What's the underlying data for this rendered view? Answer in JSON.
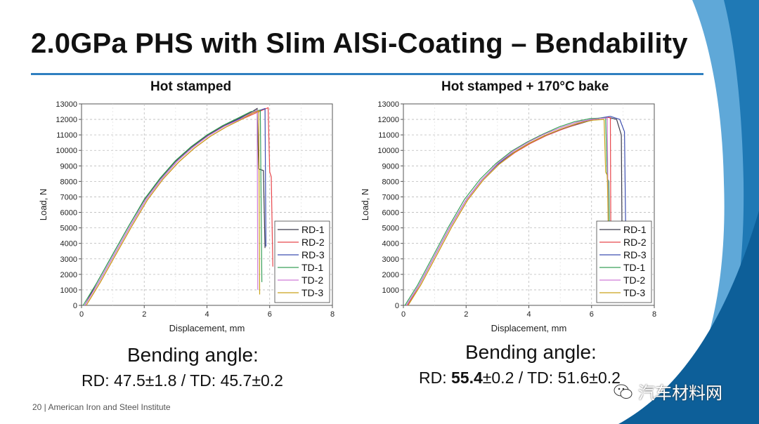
{
  "slide": {
    "title": "2.0GPa PHS with Slim AlSi-Coating – Bendability",
    "footer": "20  |  American Iron and Steel Institute",
    "watermark": "汽车材料网",
    "accent_color": "#2f7fc0"
  },
  "left": {
    "angle_heading": "Bending angle:",
    "rd_label": "RD: ",
    "rd_value": "47.5±1.8",
    "sep": " / TD: ",
    "td_value": "45.7±0.2"
  },
  "right": {
    "angle_heading": "Bending angle:",
    "rd_label": "RD: ",
    "rd_value": "55.4",
    "rd_tol": "±0.2",
    "sep": " / TD: ",
    "td_value": "51.6±0.2"
  },
  "chart_data": [
    {
      "type": "line",
      "title": "Hot stamped",
      "xlabel": "Displacement, mm",
      "ylabel": "Load, N",
      "xlim": [
        0,
        8
      ],
      "ylim": [
        0,
        13000
      ],
      "xticks": [
        0,
        2,
        4,
        6,
        8
      ],
      "yticks": [
        0,
        1000,
        2000,
        3000,
        4000,
        5000,
        6000,
        7000,
        8000,
        9000,
        10000,
        11000,
        12000,
        13000
      ],
      "grid": true,
      "legend": "bottom-right",
      "series": [
        {
          "name": "RD-1",
          "color": "#3a3a4a",
          "points": [
            [
              0.1,
              0
            ],
            [
              0.5,
              1500
            ],
            [
              1,
              3300
            ],
            [
              1.5,
              5100
            ],
            [
              2,
              6800
            ],
            [
              2.5,
              8150
            ],
            [
              3,
              9300
            ],
            [
              3.5,
              10200
            ],
            [
              4,
              10950
            ],
            [
              4.5,
              11550
            ],
            [
              5,
              12050
            ],
            [
              5.4,
              12450
            ],
            [
              5.6,
              12700
            ],
            [
              5.65,
              8800
            ],
            [
              5.8,
              8700
            ],
            [
              5.85,
              3700
            ]
          ]
        },
        {
          "name": "RD-2",
          "color": "#e8474c",
          "points": [
            [
              0.15,
              0
            ],
            [
              0.6,
              1500
            ],
            [
              1.1,
              3300
            ],
            [
              1.6,
              5100
            ],
            [
              2.1,
              6800
            ],
            [
              2.6,
              8150
            ],
            [
              3.1,
              9250
            ],
            [
              3.6,
              10150
            ],
            [
              4.1,
              10900
            ],
            [
              4.6,
              11500
            ],
            [
              5.1,
              12000
            ],
            [
              5.6,
              12450
            ],
            [
              5.95,
              12750
            ],
            [
              6.0,
              8600
            ],
            [
              6.05,
              8300
            ],
            [
              6.1,
              2500
            ]
          ]
        },
        {
          "name": "RD-3",
          "color": "#3d4fb0",
          "points": [
            [
              0.1,
              0
            ],
            [
              0.55,
              1500
            ],
            [
              1.05,
              3300
            ],
            [
              1.55,
              5100
            ],
            [
              2.05,
              6800
            ],
            [
              2.55,
              8150
            ],
            [
              3.05,
              9300
            ],
            [
              3.55,
              10200
            ],
            [
              4.05,
              10950
            ],
            [
              4.55,
              11550
            ],
            [
              5.05,
              12050
            ],
            [
              5.5,
              12450
            ],
            [
              5.85,
              12700
            ],
            [
              5.88,
              3800
            ]
          ]
        },
        {
          "name": "TD-1",
          "color": "#3aa05a",
          "points": [
            [
              0.05,
              0
            ],
            [
              0.5,
              1500
            ],
            [
              1,
              3300
            ],
            [
              1.5,
              5100
            ],
            [
              2,
              6850
            ],
            [
              2.5,
              8200
            ],
            [
              3,
              9350
            ],
            [
              3.5,
              10250
            ],
            [
              4,
              11000
            ],
            [
              4.5,
              11600
            ],
            [
              5,
              12100
            ],
            [
              5.4,
              12500
            ],
            [
              5.7,
              12600
            ],
            [
              5.75,
              1500
            ]
          ]
        },
        {
          "name": "TD-2",
          "color": "#d07ad8",
          "points": [
            [
              0.1,
              0
            ],
            [
              0.55,
              1500
            ],
            [
              1.05,
              3300
            ],
            [
              1.55,
              5100
            ],
            [
              2.05,
              6800
            ],
            [
              2.55,
              8150
            ],
            [
              3.05,
              9300
            ],
            [
              3.55,
              10200
            ],
            [
              4.05,
              10950
            ],
            [
              4.55,
              11550
            ],
            [
              5.05,
              12000
            ],
            [
              5.4,
              12400
            ],
            [
              5.6,
              12600
            ],
            [
              5.62,
              1000
            ]
          ]
        },
        {
          "name": "TD-3",
          "color": "#c9a21a",
          "points": [
            [
              0.15,
              0
            ],
            [
              0.6,
              1500
            ],
            [
              1.1,
              3300
            ],
            [
              1.6,
              5100
            ],
            [
              2.1,
              6800
            ],
            [
              2.6,
              8150
            ],
            [
              3.1,
              9250
            ],
            [
              3.6,
              10150
            ],
            [
              4.1,
              10900
            ],
            [
              4.6,
              11500
            ],
            [
              5.1,
              12000
            ],
            [
              5.45,
              12400
            ],
            [
              5.65,
              12550
            ],
            [
              5.68,
              700
            ]
          ]
        }
      ]
    },
    {
      "type": "line",
      "title": "Hot stamped + 170°C bake",
      "xlabel": "Displacement, mm",
      "ylabel": "Load, N",
      "xlim": [
        0,
        8
      ],
      "ylim": [
        0,
        13000
      ],
      "xticks": [
        0,
        2,
        4,
        6,
        8
      ],
      "yticks": [
        0,
        1000,
        2000,
        3000,
        4000,
        5000,
        6000,
        7000,
        8000,
        9000,
        10000,
        11000,
        12000,
        13000
      ],
      "grid": true,
      "legend": "bottom-right",
      "series": [
        {
          "name": "RD-1",
          "color": "#3a3a4a",
          "points": [
            [
              0.1,
              0
            ],
            [
              0.5,
              1300
            ],
            [
              1,
              3200
            ],
            [
              1.5,
              5100
            ],
            [
              2,
              6800
            ],
            [
              2.5,
              8100
            ],
            [
              3,
              9100
            ],
            [
              3.5,
              9850
            ],
            [
              4,
              10450
            ],
            [
              4.5,
              10950
            ],
            [
              5,
              11350
            ],
            [
              5.5,
              11650
            ],
            [
              6,
              11950
            ],
            [
              6.5,
              12150
            ],
            [
              6.8,
              12000
            ],
            [
              6.95,
              11000
            ],
            [
              6.97,
              5200
            ],
            [
              7.05,
              4900
            ],
            [
              7.1,
              2800
            ]
          ]
        },
        {
          "name": "RD-2",
          "color": "#e8474c",
          "points": [
            [
              0.12,
              0
            ],
            [
              0.55,
              1300
            ],
            [
              1.05,
              3200
            ],
            [
              1.55,
              5100
            ],
            [
              2.05,
              6800
            ],
            [
              2.55,
              8100
            ],
            [
              3.05,
              9100
            ],
            [
              3.55,
              9850
            ],
            [
              4.05,
              10450
            ],
            [
              4.55,
              10950
            ],
            [
              5.05,
              11350
            ],
            [
              5.55,
              11700
            ],
            [
              6.05,
              12000
            ],
            [
              6.5,
              12150
            ],
            [
              6.6,
              12100
            ],
            [
              6.62,
              1700
            ]
          ]
        },
        {
          "name": "RD-3",
          "color": "#3d4fb0",
          "points": [
            [
              0.1,
              0
            ],
            [
              0.5,
              1300
            ],
            [
              1,
              3200
            ],
            [
              1.5,
              5100
            ],
            [
              2,
              6800
            ],
            [
              2.5,
              8100
            ],
            [
              3,
              9100
            ],
            [
              3.5,
              9850
            ],
            [
              4,
              10450
            ],
            [
              4.5,
              10950
            ],
            [
              5,
              11350
            ],
            [
              5.5,
              11700
            ],
            [
              6,
              12000
            ],
            [
              6.6,
              12200
            ],
            [
              6.9,
              12000
            ],
            [
              7.05,
              11200
            ],
            [
              7.1,
              3000
            ]
          ]
        },
        {
          "name": "TD-1",
          "color": "#3aa05a",
          "points": [
            [
              0.05,
              0
            ],
            [
              0.45,
              1300
            ],
            [
              0.95,
              3200
            ],
            [
              1.45,
              5100
            ],
            [
              1.95,
              6850
            ],
            [
              2.45,
              8150
            ],
            [
              2.95,
              9150
            ],
            [
              3.45,
              9950
            ],
            [
              3.95,
              10550
            ],
            [
              4.45,
              11050
            ],
            [
              4.95,
              11500
            ],
            [
              5.45,
              11850
            ],
            [
              5.95,
              12050
            ],
            [
              6.45,
              12100
            ],
            [
              6.5,
              8200
            ],
            [
              6.55,
              8000
            ],
            [
              6.58,
              3200
            ]
          ]
        },
        {
          "name": "TD-2",
          "color": "#d07ad8",
          "points": [
            [
              0.1,
              0
            ],
            [
              0.5,
              1300
            ],
            [
              1,
              3200
            ],
            [
              1.5,
              5100
            ],
            [
              2,
              6800
            ],
            [
              2.5,
              8100
            ],
            [
              3,
              9150
            ],
            [
              3.5,
              9950
            ],
            [
              4,
              10550
            ],
            [
              4.5,
              11050
            ],
            [
              5,
              11450
            ],
            [
              5.5,
              11800
            ],
            [
              6,
              12000
            ],
            [
              6.5,
              12100
            ],
            [
              6.55,
              800
            ]
          ]
        },
        {
          "name": "TD-3",
          "color": "#c9a21a",
          "points": [
            [
              0.15,
              0
            ],
            [
              0.55,
              1300
            ],
            [
              1.05,
              3200
            ],
            [
              1.55,
              5100
            ],
            [
              2.05,
              6800
            ],
            [
              2.55,
              8100
            ],
            [
              3.05,
              9100
            ],
            [
              3.55,
              9900
            ],
            [
              4.05,
              10500
            ],
            [
              4.55,
              11000
            ],
            [
              5.05,
              11400
            ],
            [
              5.55,
              11750
            ],
            [
              6.05,
              11950
            ],
            [
              6.4,
              12000
            ],
            [
              6.45,
              8600
            ],
            [
              6.5,
              8400
            ],
            [
              6.55,
              3500
            ]
          ]
        }
      ]
    }
  ]
}
